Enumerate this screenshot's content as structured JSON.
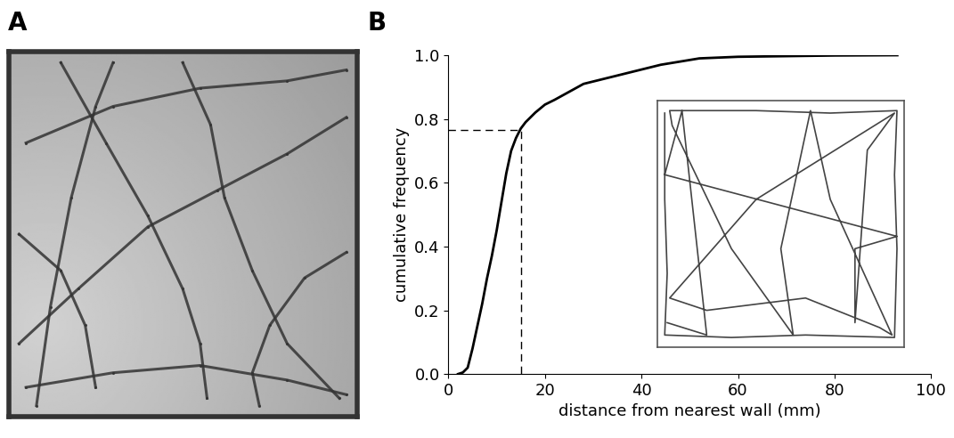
{
  "chart_data": [
    {
      "type": "image",
      "title": "A",
      "tick_labels": false,
      "color": "#333333",
      "xlim": [
        0,
        100
      ],
      "ylim": [
        0,
        100
      ],
      "paths": [
        [
          [
            8,
            3
          ],
          [
            12,
            30
          ],
          [
            18,
            60
          ],
          [
            25,
            85
          ],
          [
            30,
            97
          ]
        ],
        [
          [
            3,
            20
          ],
          [
            20,
            35
          ],
          [
            40,
            52
          ],
          [
            60,
            62
          ],
          [
            80,
            72
          ],
          [
            97,
            82
          ]
        ],
        [
          [
            15,
            97
          ],
          [
            28,
            75
          ],
          [
            40,
            55
          ],
          [
            50,
            35
          ],
          [
            55,
            20
          ],
          [
            57,
            5
          ]
        ],
        [
          [
            5,
            75
          ],
          [
            30,
            85
          ],
          [
            55,
            90
          ],
          [
            80,
            92
          ],
          [
            97,
            95
          ]
        ],
        [
          [
            50,
            97
          ],
          [
            58,
            80
          ],
          [
            62,
            60
          ],
          [
            70,
            40
          ],
          [
            80,
            20
          ],
          [
            95,
            5
          ]
        ],
        [
          [
            5,
            8
          ],
          [
            30,
            12
          ],
          [
            55,
            14
          ],
          [
            80,
            10
          ],
          [
            97,
            6
          ]
        ],
        [
          [
            97,
            45
          ],
          [
            85,
            38
          ],
          [
            75,
            25
          ],
          [
            70,
            12
          ],
          [
            72,
            3
          ]
        ],
        [
          [
            3,
            50
          ],
          [
            15,
            40
          ],
          [
            22,
            25
          ],
          [
            25,
            8
          ]
        ]
      ]
    },
    {
      "type": "line",
      "title": "B",
      "color": "#000000",
      "xlabel": "distance from nearest wall (mm)",
      "ylabel": "cumulative frequency",
      "x": [
        2,
        3,
        4,
        5,
        6,
        7,
        8,
        9,
        10,
        11,
        12,
        13,
        14,
        15,
        16,
        18,
        20,
        22,
        25,
        28,
        32,
        36,
        40,
        44,
        48,
        52,
        60,
        70,
        80,
        93
      ],
      "values": [
        0,
        0.005,
        0.02,
        0.08,
        0.15,
        0.22,
        0.3,
        0.37,
        0.45,
        0.54,
        0.63,
        0.7,
        0.74,
        0.77,
        0.79,
        0.82,
        0.845,
        0.86,
        0.885,
        0.91,
        0.925,
        0.94,
        0.955,
        0.97,
        0.98,
        0.99,
        0.995,
        0.997,
        0.999,
        1.0
      ],
      "xlim": [
        0,
        100
      ],
      "xticks": [
        0,
        20,
        40,
        60,
        80,
        100
      ],
      "ylim": [
        0,
        1.0
      ],
      "yticks": [
        {
          "value": 0,
          "label": "0.0"
        },
        {
          "value": 0.2,
          "label": "0.2"
        },
        {
          "value": 0.4,
          "label": "0.4"
        },
        {
          "value": 0.6,
          "label": "0.6"
        },
        {
          "value": 0.8,
          "label": "0.8"
        },
        {
          "value": 1.0,
          "label": "1.0"
        }
      ],
      "threshold": {
        "x": 15,
        "y": 0.765
      },
      "inset": {
        "type": "line",
        "color": "#444444",
        "tick_labels": false,
        "xlim": [
          0,
          100
        ],
        "ylim": [
          0,
          100
        ],
        "x": [
          3,
          3,
          4,
          3,
          30,
          60,
          96,
          97,
          96,
          97,
          70,
          40,
          5,
          6,
          30,
          55,
          50,
          62,
          70,
          95,
          90,
          60,
          20,
          5,
          40,
          96,
          85,
          80,
          80,
          97,
          3,
          10,
          20,
          4
        ],
        "y": [
          95,
          60,
          30,
          5,
          4,
          5,
          4,
          40,
          70,
          96,
          95,
          96,
          96,
          90,
          40,
          5,
          40,
          96,
          60,
          5,
          8,
          20,
          15,
          20,
          60,
          95,
          80,
          10,
          40,
          45,
          70,
          96,
          5,
          10
        ]
      }
    }
  ]
}
